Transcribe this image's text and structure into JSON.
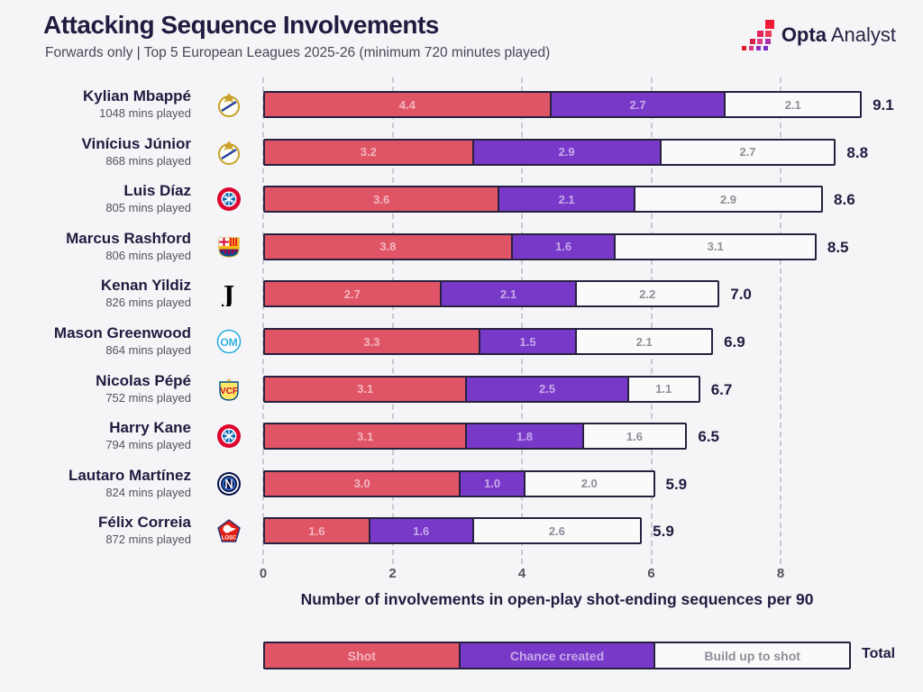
{
  "header": {
    "title": "Attacking Sequence Involvements",
    "subtitle": "Forwards only | Top 5 European Leagues 2025-26 (minimum 720 minutes played)"
  },
  "logo": {
    "brand_bold": "Opta",
    "brand_light": "Analyst"
  },
  "colors": {
    "background": "#F5F4F6",
    "shot": "#E05565",
    "chance": "#7839C9",
    "buildup": "#FAFAFB",
    "bar_border": "#27213F",
    "shot_label": "#F2B6C0",
    "chance_label": "#C7A9E9",
    "buildup_label": "#8E8E98"
  },
  "chart_data": {
    "type": "bar",
    "orientation": "horizontal-stacked",
    "title": "Attacking Sequence Involvements",
    "xlabel": "Number of involvements in open-play shot-ending sequences per 90",
    "ylabel": "",
    "xlim": [
      0,
      9.6
    ],
    "x_ticks": [
      "0",
      "2",
      "4",
      "6",
      "8"
    ],
    "grid": "dashed-vertical",
    "legend_position": "bottom",
    "series_names": [
      "Shot",
      "Chance created",
      "Build up to shot"
    ],
    "players": [
      {
        "name": "Kylian Mbappé",
        "mins": "1048 mins played",
        "club": "real-madrid",
        "shot": "4.4",
        "chance": "2.7",
        "buildup": "2.1",
        "total": "9.1"
      },
      {
        "name": "Vinícius Júnior",
        "mins": "868 mins played",
        "club": "real-madrid",
        "shot": "3.2",
        "chance": "2.9",
        "buildup": "2.7",
        "total": "8.8"
      },
      {
        "name": "Luis Díaz",
        "mins": "805 mins played",
        "club": "bayern",
        "shot": "3.6",
        "chance": "2.1",
        "buildup": "2.9",
        "total": "8.6"
      },
      {
        "name": "Marcus Rashford",
        "mins": "806 mins played",
        "club": "barcelona",
        "shot": "3.8",
        "chance": "1.6",
        "buildup": "3.1",
        "total": "8.5"
      },
      {
        "name": "Kenan Yildiz",
        "mins": "826 mins played",
        "club": "juventus",
        "shot": "2.7",
        "chance": "2.1",
        "buildup": "2.2",
        "total": "7.0"
      },
      {
        "name": "Mason Greenwood",
        "mins": "864 mins played",
        "club": "marseille",
        "shot": "3.3",
        "chance": "1.5",
        "buildup": "2.1",
        "total": "6.9"
      },
      {
        "name": "Nicolas Pépé",
        "mins": "752 mins played",
        "club": "villarreal",
        "shot": "3.1",
        "chance": "2.5",
        "buildup": "1.1",
        "total": "6.7"
      },
      {
        "name": "Harry Kane",
        "mins": "794 mins played",
        "club": "bayern",
        "shot": "3.1",
        "chance": "1.8",
        "buildup": "1.6",
        "total": "6.5"
      },
      {
        "name": "Lautaro Martínez",
        "mins": "824 mins played",
        "club": "inter",
        "shot": "3.0",
        "chance": "1.0",
        "buildup": "2.0",
        "total": "5.9"
      },
      {
        "name": "Félix Correia",
        "mins": "872 mins played",
        "club": "lille",
        "shot": "1.6",
        "chance": "1.6",
        "buildup": "2.6",
        "total": "5.9"
      }
    ]
  },
  "legend": {
    "items": [
      {
        "label": "Shot",
        "type": "shot"
      },
      {
        "label": "Chance created",
        "type": "chance"
      },
      {
        "label": "Build up to shot",
        "type": "buildup"
      }
    ],
    "total_label": "Total"
  }
}
